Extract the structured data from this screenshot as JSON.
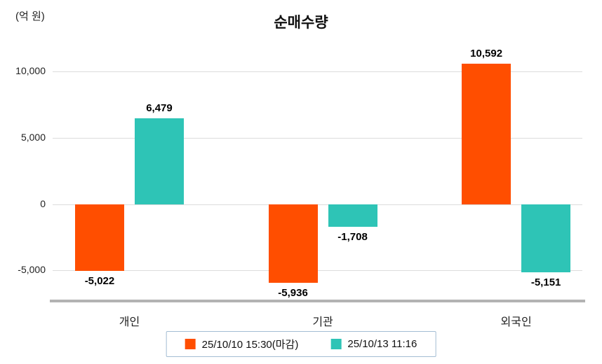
{
  "chart": {
    "title": "순매수량",
    "unit_label": "(억 원)"
  },
  "chart_data": {
    "type": "bar",
    "title": "순매수량",
    "ylabel": "(억 원)",
    "categories": [
      "개인",
      "기관",
      "외국인"
    ],
    "series": [
      {
        "name": "25/10/10 15:30(마감)",
        "color": "#FF4E00",
        "values": [
          -5022,
          -5936,
          10592
        ],
        "labels": [
          "-5,022",
          "-5,936",
          "10,592"
        ]
      },
      {
        "name": "25/10/13 11:16",
        "color": "#2EC4B6",
        "values": [
          6479,
          -1708,
          -5151
        ],
        "labels": [
          "6,479",
          "-1,708",
          "-5,151"
        ]
      }
    ],
    "yticks": [
      10000,
      5000,
      0,
      -5000
    ],
    "ytick_labels": [
      "10,000",
      "5,000",
      "0",
      "-5,000"
    ],
    "ylim": [
      -7300,
      11700
    ],
    "grid": true,
    "legend_position": "bottom"
  }
}
